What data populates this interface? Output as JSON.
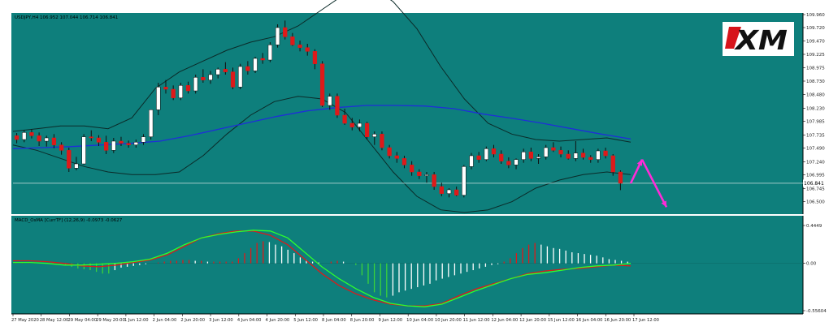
{
  "symbol_info": "USDJPY,H4  106.952 107.044 106.714 106.841",
  "indicator_label": "MACD_OsMA [CurrTF] (12,26,9) -0.0973 -0.0627",
  "logo_text": "XM",
  "colors": {
    "background": "#0e7f7c",
    "bull_candle": "#ffffff",
    "bear_candle": "#dd1a1a",
    "bollinger": "#0b2a28",
    "moving_average": "#1f2fd8",
    "macd_signal": "#dd1a1a",
    "macd_main": "#2dff2d",
    "hist_pos": "#ffffff",
    "hist_neg": "#3ad33a",
    "forecast_arrow": "#ff2bd8",
    "axis_text": "#222222"
  },
  "chart_data": [
    {
      "type": "candlestick",
      "title": "USDJPY,H4",
      "ohlc_current": {
        "open": 106.952,
        "high": 107.044,
        "low": 106.714,
        "close": 106.841
      },
      "ylim": [
        106.3,
        109.96
      ],
      "y_ticks": [
        "109.960",
        "109.720",
        "109.470",
        "109.225",
        "108.975",
        "108.730",
        "108.480",
        "108.230",
        "107.985",
        "107.735",
        "107.490",
        "107.240",
        "106.995",
        "106.745",
        "106.500"
      ],
      "price_marker": "106.841",
      "x_ticks": [
        "27 May 2020",
        "28 May 12:00",
        "29 May 04:00",
        "29 May 20:00",
        "1 Jun 12:00",
        "2 Jun 04:00",
        "2 Jun 20:00",
        "3 Jun 12:00",
        "4 Jun 04:00",
        "4 Jun 20:00",
        "5 Jun 12:00",
        "8 Jun 04:00",
        "8 Jun 20:00",
        "9 Jun 12:00",
        "10 Jun 04:00",
        "10 Jun 20:00",
        "11 Jun 12:00",
        "12 Jun 04:00",
        "12 Jun 20:00",
        "15 Jun 12:00",
        "16 Jun 04:00",
        "16 Jun 20:00",
        "17 Jun 12:00"
      ],
      "candles": [
        [
          107.72,
          107.77,
          107.58,
          107.65
        ],
        [
          107.65,
          107.82,
          107.6,
          107.78
        ],
        [
          107.78,
          107.84,
          107.67,
          107.72
        ],
        [
          107.72,
          107.78,
          107.53,
          107.62
        ],
        [
          107.62,
          107.72,
          107.52,
          107.68
        ],
        [
          107.68,
          107.75,
          107.49,
          107.55
        ],
        [
          107.55,
          107.6,
          107.37,
          107.45
        ],
        [
          107.45,
          107.5,
          107.05,
          107.12
        ],
        [
          107.12,
          107.33,
          107.08,
          107.2
        ],
        [
          107.2,
          107.75,
          107.18,
          107.7
        ],
        [
          107.7,
          107.82,
          107.62,
          107.68
        ],
        [
          107.68,
          107.73,
          107.53,
          107.6
        ],
        [
          107.6,
          107.72,
          107.38,
          107.45
        ],
        [
          107.45,
          107.68,
          107.4,
          107.62
        ],
        [
          107.62,
          107.7,
          107.53,
          107.58
        ],
        [
          107.58,
          107.63,
          107.5,
          107.55
        ],
        [
          107.55,
          107.65,
          107.5,
          107.6
        ],
        [
          107.6,
          107.75,
          107.55,
          107.7
        ],
        [
          107.7,
          108.2,
          107.65,
          108.2
        ],
        [
          108.2,
          108.7,
          108.1,
          108.62
        ],
        [
          108.62,
          108.75,
          108.5,
          108.58
        ],
        [
          108.58,
          108.65,
          108.38,
          108.42
        ],
        [
          108.42,
          108.7,
          108.38,
          108.65
        ],
        [
          108.65,
          108.72,
          108.5,
          108.55
        ],
        [
          108.55,
          108.85,
          108.5,
          108.8
        ],
        [
          108.8,
          108.95,
          108.7,
          108.75
        ],
        [
          108.75,
          108.92,
          108.68,
          108.85
        ],
        [
          108.85,
          108.98,
          108.78,
          108.95
        ],
        [
          108.95,
          109.08,
          108.85,
          108.9
        ],
        [
          108.9,
          108.98,
          108.58,
          108.62
        ],
        [
          108.62,
          109.05,
          108.58,
          109.0
        ],
        [
          109.0,
          109.1,
          108.85,
          108.92
        ],
        [
          108.92,
          109.18,
          108.88,
          109.15
        ],
        [
          109.15,
          109.25,
          109.05,
          109.12
        ],
        [
          109.12,
          109.45,
          109.08,
          109.4
        ],
        [
          109.4,
          109.78,
          109.35,
          109.72
        ],
        [
          109.72,
          109.85,
          109.5,
          109.55
        ],
        [
          109.55,
          109.62,
          109.38,
          109.4
        ],
        [
          109.4,
          109.48,
          109.28,
          109.35
        ],
        [
          109.35,
          109.42,
          109.2,
          109.28
        ],
        [
          109.28,
          109.32,
          108.95,
          109.05
        ],
        [
          109.05,
          109.1,
          108.25,
          108.28
        ],
        [
          108.28,
          108.5,
          108.2,
          108.45
        ],
        [
          108.45,
          108.5,
          108.05,
          108.1
        ],
        [
          108.1,
          108.22,
          107.92,
          107.95
        ],
        [
          107.95,
          108.05,
          107.82,
          107.88
        ],
        [
          107.88,
          108.02,
          107.8,
          107.95
        ],
        [
          107.95,
          107.98,
          107.65,
          107.7
        ],
        [
          107.7,
          107.8,
          107.55,
          107.75
        ],
        [
          107.75,
          107.8,
          107.45,
          107.5
        ],
        [
          107.5,
          107.55,
          107.3,
          107.35
        ],
        [
          107.35,
          107.42,
          107.22,
          107.3
        ],
        [
          107.3,
          107.35,
          107.12,
          107.18
        ],
        [
          107.18,
          107.25,
          106.98,
          107.05
        ],
        [
          107.05,
          107.1,
          106.92,
          106.98
        ],
        [
          106.98,
          107.05,
          106.85,
          107.0
        ],
        [
          107.0,
          107.05,
          106.72,
          106.78
        ],
        [
          106.78,
          106.85,
          106.6,
          106.65
        ],
        [
          106.65,
          106.75,
          106.58,
          106.72
        ],
        [
          106.72,
          106.78,
          106.6,
          106.62
        ],
        [
          106.62,
          107.18,
          106.58,
          107.15
        ],
        [
          107.15,
          107.4,
          107.1,
          107.35
        ],
        [
          107.35,
          107.42,
          107.22,
          107.28
        ],
        [
          107.28,
          107.52,
          107.25,
          107.48
        ],
        [
          107.48,
          107.55,
          107.32,
          107.38
        ],
        [
          107.38,
          107.45,
          107.2,
          107.25
        ],
        [
          107.25,
          107.32,
          107.12,
          107.18
        ],
        [
          107.18,
          107.3,
          107.1,
          107.28
        ],
        [
          107.28,
          107.48,
          107.22,
          107.42
        ],
        [
          107.42,
          107.5,
          107.25,
          107.3
        ],
        [
          107.3,
          107.38,
          107.2,
          107.33
        ],
        [
          107.33,
          107.55,
          107.28,
          107.5
        ],
        [
          107.5,
          107.6,
          107.42,
          107.45
        ],
        [
          107.45,
          107.52,
          107.32,
          107.38
        ],
        [
          107.38,
          107.45,
          107.28,
          107.3
        ],
        [
          107.3,
          107.62,
          107.25,
          107.4
        ],
        [
          107.4,
          107.48,
          107.28,
          107.32
        ],
        [
          107.32,
          107.36,
          107.22,
          107.28
        ],
        [
          107.28,
          107.48,
          107.22,
          107.44
        ],
        [
          107.44,
          107.5,
          107.3,
          107.35
        ],
        [
          107.35,
          107.38,
          106.98,
          107.05
        ],
        [
          107.05,
          107.08,
          106.714,
          106.841
        ]
      ],
      "moving_average": [
        107.48,
        107.5,
        107.52,
        107.55,
        107.58,
        107.62,
        107.72,
        107.84,
        107.96,
        108.08,
        108.18,
        108.24,
        108.28,
        108.28,
        108.27,
        108.22,
        108.12,
        108.04,
        107.95,
        107.85,
        107.75,
        107.66
      ],
      "bollinger_upper": [
        107.8,
        107.85,
        107.9,
        107.9,
        107.85,
        108.05,
        108.6,
        108.9,
        109.1,
        109.3,
        109.45,
        109.55,
        109.75,
        110.05,
        110.35,
        110.5,
        110.2,
        109.7,
        109.0,
        108.4,
        107.95,
        107.75,
        107.65,
        107.62,
        107.65,
        107.68,
        107.6
      ],
      "bollinger_lower": [
        107.55,
        107.45,
        107.3,
        107.15,
        107.05,
        107.0,
        107.0,
        107.05,
        107.35,
        107.75,
        108.1,
        108.35,
        108.45,
        108.4,
        108.15,
        107.6,
        107.05,
        106.6,
        106.35,
        106.3,
        106.35,
        106.5,
        106.75,
        106.9,
        107.0,
        107.05,
        107.0
      ],
      "forecast": [
        [
          106.84,
          107.28
        ],
        [
          107.28,
          106.4
        ]
      ]
    },
    {
      "type": "histogram",
      "title": "MACD_OsMA [CurrTF] (12,26,9) -0.0973 -0.0627",
      "ylim": [
        -0.55604,
        0.4449
      ],
      "y_ticks": [
        "0.4449",
        "0.00",
        "-0.55604"
      ],
      "histogram": [
        0.01,
        0.01,
        0.01,
        0.01,
        0.0,
        0.0,
        0.01,
        0.0,
        -0.02,
        -0.04,
        -0.06,
        -0.07,
        -0.08,
        -0.1,
        -0.12,
        -0.12,
        -0.08,
        -0.05,
        -0.04,
        -0.03,
        -0.02,
        -0.01,
        0.0,
        0.01,
        0.02,
        0.03,
        0.03,
        0.04,
        0.04,
        0.03,
        0.03,
        0.02,
        0.02,
        0.02,
        0.02,
        0.02,
        0.06,
        0.12,
        0.18,
        0.24,
        0.26,
        0.25,
        0.22,
        0.2,
        0.16,
        0.12,
        0.07,
        0.04,
        0.02,
        0.01,
        0.0,
        0.02,
        0.03,
        0.02,
        0.0,
        -0.02,
        -0.14,
        -0.24,
        -0.34,
        -0.38,
        -0.4,
        -0.38,
        -0.34,
        -0.32,
        -0.3,
        -0.28,
        -0.26,
        -0.24,
        -0.2,
        -0.18,
        -0.16,
        -0.14,
        -0.12,
        -0.1,
        -0.08,
        -0.06,
        -0.04,
        -0.02,
        -0.01,
        0.02,
        0.06,
        0.12,
        0.18,
        0.22,
        0.24,
        0.22,
        0.2,
        0.18,
        0.17,
        0.15,
        0.13,
        0.12,
        0.11,
        0.1,
        0.09,
        0.07,
        0.05,
        0.04,
        0.03,
        0.02
      ],
      "signal": [
        0.03,
        0.03,
        0.02,
        0.0,
        -0.03,
        -0.04,
        -0.02,
        0.01,
        0.04,
        0.1,
        0.2,
        0.3,
        0.35,
        0.38,
        0.38,
        0.33,
        0.22,
        0.05,
        -0.12,
        -0.26,
        -0.36,
        -0.43,
        -0.48,
        -0.5,
        -0.5,
        -0.47,
        -0.38,
        -0.3,
        -0.24,
        -0.18,
        -0.12,
        -0.09,
        -0.07,
        -0.06,
        -0.04,
        -0.02,
        -0.03
      ],
      "main": [
        0.01,
        0.01,
        0.0,
        -0.02,
        -0.02,
        -0.01,
        0.0,
        0.02,
        0.05,
        0.12,
        0.22,
        0.3,
        0.34,
        0.37,
        0.39,
        0.38,
        0.3,
        0.13,
        -0.04,
        -0.18,
        -0.3,
        -0.4,
        -0.47,
        -0.5,
        -0.51,
        -0.48,
        -0.4,
        -0.32,
        -0.25,
        -0.18,
        -0.13,
        -0.11,
        -0.08,
        -0.05,
        -0.03,
        -0.02,
        0.0
      ]
    }
  ]
}
